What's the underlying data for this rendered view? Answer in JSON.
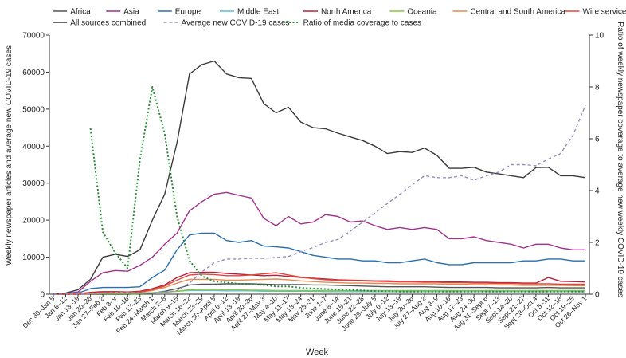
{
  "chart_data": {
    "type": "line",
    "xlabel": "Week",
    "ylabel": "Weekly newspaper articles and average new COVID-19 cases",
    "y2label": "Ratio of weekly newspaper coverage to average new weekly COVID-19 cases",
    "ylim": [
      0,
      70000
    ],
    "y2lim": [
      0,
      10
    ],
    "yticks": [
      "0",
      "10000",
      "20000",
      "30000",
      "40000",
      "50000",
      "60000",
      "70000"
    ],
    "y2ticks": [
      "0",
      "2",
      "4",
      "6",
      "8",
      "10"
    ],
    "grid": false,
    "legend_position": "top",
    "categories": [
      "Dec 30–Jan 5",
      "Jan 6–12",
      "Jan 13–19",
      "Jan 20–26",
      "Jan 27–Feb 2",
      "Feb 3–9",
      "Feb 10–16",
      "Feb 17–23",
      "Feb 24–March 1",
      "March 2–8",
      "March 9–15",
      "March 16–22",
      "March 23–29",
      "March 30–April 5",
      "April 6–12",
      "April 13–19",
      "April 20–26",
      "April 27–May 3",
      "May 4–10",
      "May 11–17",
      "May 18–24",
      "May 25–31",
      "June 1–7",
      "June 8–14",
      "June 15–21",
      "June 22–28",
      "June 29–July 5",
      "July 6–12",
      "July 13–19",
      "July 20–26",
      "July 27–Aug 2",
      "Aug 3–9",
      "Aug 10–16",
      "Aug 17–23",
      "Aug 24–30",
      "Aug 31–Sept 6",
      "Sept 7–13",
      "Sept 14–20",
      "Sept 21–27",
      "Sept 28–Oct 4",
      "Oct 5–11",
      "Oct 12–18",
      "Oct 19–25",
      "Oct 26–Nov 1"
    ],
    "xtick_labels": [
      "Dec 30–Jan 5",
      "Jan 6–12",
      "Jan 13–19",
      "Jan 20–26",
      "Jan 27–Feb 2",
      "Feb 3–9",
      "Feb 10–16",
      "Feb 17–23",
      "Feb 24–March 1",
      "March 2–8",
      "March 9–15",
      "March 16–22",
      "March 23–29",
      "March 30–April 5",
      "April 6–12",
      "April 13–19",
      "April 20–26",
      "April 27–May 3",
      "May 4–10",
      "May 11–17",
      "May 18–24",
      "May 25–31",
      "June 1–7",
      "June 8–14",
      "June 15–21",
      "June 22–28",
      "June 29–July 5",
      "July 6–12",
      "July 13–19",
      "July 20–26",
      "July 27–Aug 2",
      "Aug 3–9",
      "Aug 10–16",
      "Aug 17–23",
      "Aug 24–30",
      "Aug 31–Sept 6",
      "Sept 7–13",
      "Sept 14–20",
      "Sept 21–27",
      "Sept 28–Oct 4",
      "Oct 5–11",
      "Oct 12–18",
      "Oct 19–25",
      "Oct 26–Nov 1"
    ],
    "series": [
      {
        "name": "Africa",
        "color": "#555555",
        "axis": "left",
        "style": "solid",
        "values": [
          0,
          0,
          0,
          0,
          0,
          0,
          0,
          100,
          300,
          800,
          1500,
          2500,
          2700,
          2700,
          2800,
          2800,
          2800,
          2700,
          2600,
          2600,
          2600,
          2500,
          2500,
          2400,
          2300,
          2200,
          2100,
          2000,
          2000,
          2000,
          2000,
          1900,
          1800,
          1800,
          1800,
          1800,
          1700,
          1700,
          1700,
          1700,
          1800,
          1700,
          1700,
          1700
        ]
      },
      {
        "name": "Asia",
        "color": "#a0328c",
        "axis": "left",
        "style": "solid",
        "values": [
          100,
          200,
          600,
          3500,
          5800,
          6400,
          6200,
          7800,
          10000,
          13500,
          16500,
          22500,
          25000,
          27000,
          27500,
          26700,
          26000,
          20500,
          18500,
          21000,
          19000,
          19500,
          21500,
          21000,
          19500,
          19800,
          18500,
          17500,
          18000,
          17500,
          18000,
          17500,
          15000,
          15000,
          15500,
          14500,
          14000,
          13500,
          12500,
          13500,
          13500,
          12500,
          12000,
          12000
        ]
      },
      {
        "name": "Europe",
        "color": "#2a6eab",
        "axis": "left",
        "style": "solid",
        "values": [
          0,
          100,
          300,
          1500,
          1800,
          1800,
          1800,
          2000,
          4500,
          6500,
          12000,
          16000,
          16500,
          16500,
          14500,
          14000,
          14500,
          13000,
          12800,
          12500,
          11500,
          10500,
          10000,
          9500,
          9500,
          9000,
          9000,
          8500,
          8500,
          9000,
          9500,
          8500,
          8000,
          8000,
          8500,
          8500,
          8500,
          8500,
          9000,
          9000,
          9500,
          9500,
          9000,
          9000
        ]
      },
      {
        "name": "Middle East",
        "color": "#5bc0d6",
        "axis": "left",
        "style": "solid",
        "values": [
          0,
          0,
          0,
          200,
          300,
          300,
          300,
          300,
          400,
          600,
          800,
          1000,
          1000,
          1000,
          900,
          900,
          900,
          800,
          800,
          800,
          800,
          800,
          700,
          700,
          700,
          700,
          700,
          700,
          700,
          700,
          700,
          700,
          700,
          700,
          700,
          700,
          700,
          700,
          700,
          700,
          700,
          700,
          700,
          700
        ]
      },
      {
        "name": "North America",
        "color": "#b3203c",
        "axis": "left",
        "style": "solid",
        "values": [
          0,
          0,
          100,
          500,
          700,
          700,
          600,
          800,
          1500,
          2500,
          4500,
          5800,
          5900,
          5900,
          5600,
          5400,
          5200,
          5000,
          5100,
          4800,
          4500,
          4300,
          4100,
          3900,
          3800,
          3700,
          3600,
          3600,
          3500,
          3500,
          3500,
          3400,
          3300,
          3300,
          3200,
          3200,
          3100,
          3100,
          3000,
          3000,
          4500,
          3500,
          3400,
          3300
        ]
      },
      {
        "name": "Oceania",
        "color": "#8cc63f",
        "axis": "left",
        "style": "solid",
        "values": [
          0,
          0,
          0,
          100,
          200,
          200,
          200,
          200,
          300,
          500,
          800,
          1200,
          1300,
          1300,
          1200,
          1200,
          1100,
          1100,
          1000,
          1000,
          1000,
          1000,
          1000,
          1000,
          1000,
          1000,
          1000,
          1000,
          1000,
          1000,
          1000,
          1000,
          1000,
          1000,
          1000,
          1000,
          1000,
          1000,
          1000,
          1000,
          1000,
          1000,
          1000,
          1000
        ]
      },
      {
        "name": "Central and South America",
        "color": "#e88a4f",
        "axis": "left",
        "style": "solid",
        "values": [
          0,
          0,
          0,
          200,
          400,
          400,
          400,
          500,
          1000,
          1800,
          3000,
          4000,
          4000,
          4000,
          3800,
          3800,
          3900,
          4000,
          4100,
          3900,
          3600,
          3400,
          3200,
          3100,
          3000,
          3000,
          2900,
          2900,
          2800,
          2800,
          2800,
          2800,
          2700,
          2700,
          2600,
          2600,
          2500,
          2500,
          2400,
          2400,
          2400,
          2400,
          2300,
          2300
        ]
      },
      {
        "name": "Wire services",
        "color": "#e0463c",
        "axis": "left",
        "style": "solid",
        "values": [
          0,
          0,
          0,
          300,
          500,
          500,
          500,
          600,
          1200,
          2200,
          3800,
          5200,
          5400,
          5300,
          5000,
          5000,
          5200,
          5500,
          5800,
          5200,
          4600,
          4200,
          3900,
          3800,
          3700,
          3600,
          3500,
          3400,
          3300,
          3300,
          3200,
          3200,
          3100,
          3100,
          3000,
          3000,
          2900,
          2900,
          2800,
          2800,
          2800,
          2700,
          2700,
          2700
        ]
      },
      {
        "name": "All sources combined",
        "color": "#3a3a3a",
        "axis": "left",
        "style": "solid",
        "values": [
          100,
          300,
          1200,
          4000,
          10000,
          10800,
          10200,
          12000,
          20000,
          27000,
          41000,
          59500,
          62000,
          63000,
          59500,
          58500,
          58300,
          51500,
          49000,
          50500,
          46500,
          45000,
          44700,
          43500,
          42500,
          41500,
          40000,
          38000,
          38500,
          38300,
          39500,
          37500,
          34000,
          34000,
          34300,
          33000,
          32500,
          32000,
          31500,
          34200,
          34300,
          32000,
          32000,
          31500
        ]
      },
      {
        "name": "Average new COVID-19 cases",
        "color": "#9a8fbf",
        "axis": "left",
        "style": "dashed",
        "values": [
          0,
          0,
          0,
          100,
          300,
          500,
          500,
          300,
          300,
          500,
          1000,
          3000,
          6000,
          8500,
          9500,
          9500,
          9700,
          9700,
          9900,
          10200,
          11500,
          12600,
          14000,
          14800,
          17000,
          19500,
          22000,
          24500,
          27000,
          29500,
          32000,
          31500,
          31500,
          32000,
          30800,
          32000,
          33000,
          35000,
          35000,
          34700,
          36500,
          38000,
          43000,
          51000
        ]
      },
      {
        "name": "Ratio of media coverage to cases",
        "color": "#2e8b3c",
        "axis": "right",
        "style": "dotted",
        "values": [
          null,
          null,
          null,
          6.4,
          2.4,
          1.6,
          1.0,
          5.2,
          8.0,
          6.2,
          3.0,
          1.3,
          0.7,
          0.5,
          0.45,
          0.4,
          0.4,
          0.35,
          0.3,
          0.3,
          0.25,
          0.22,
          0.2,
          0.18,
          0.16,
          0.14,
          0.12,
          0.11,
          0.1,
          0.1,
          0.1,
          0.1,
          0.1,
          0.1,
          0.1,
          0.1,
          0.1,
          0.1,
          0.1,
          0.1,
          0.1,
          0.1,
          0.1,
          0.1
        ]
      }
    ]
  }
}
